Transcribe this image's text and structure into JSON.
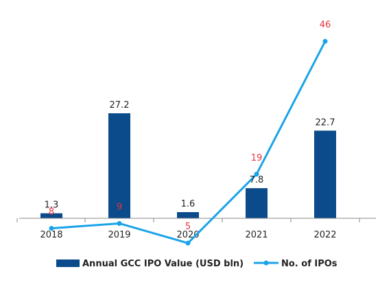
{
  "chart_data": {
    "type": "bar",
    "categories": [
      "2018",
      "2019",
      "2020",
      "2021",
      "2022"
    ],
    "series": [
      {
        "name": "Annual GCC IPO Value (USD bln)",
        "type": "bar",
        "values": [
          1.3,
          27.2,
          1.6,
          7.8,
          22.7
        ],
        "color": "#0b4a8b"
      },
      {
        "name": "No. of IPOs",
        "type": "line",
        "values": [
          8,
          9,
          5,
          19,
          46
        ],
        "color": "#1aa3e8",
        "label_color": "#e8323c"
      }
    ],
    "legend": "bottom",
    "grid": false
  }
}
